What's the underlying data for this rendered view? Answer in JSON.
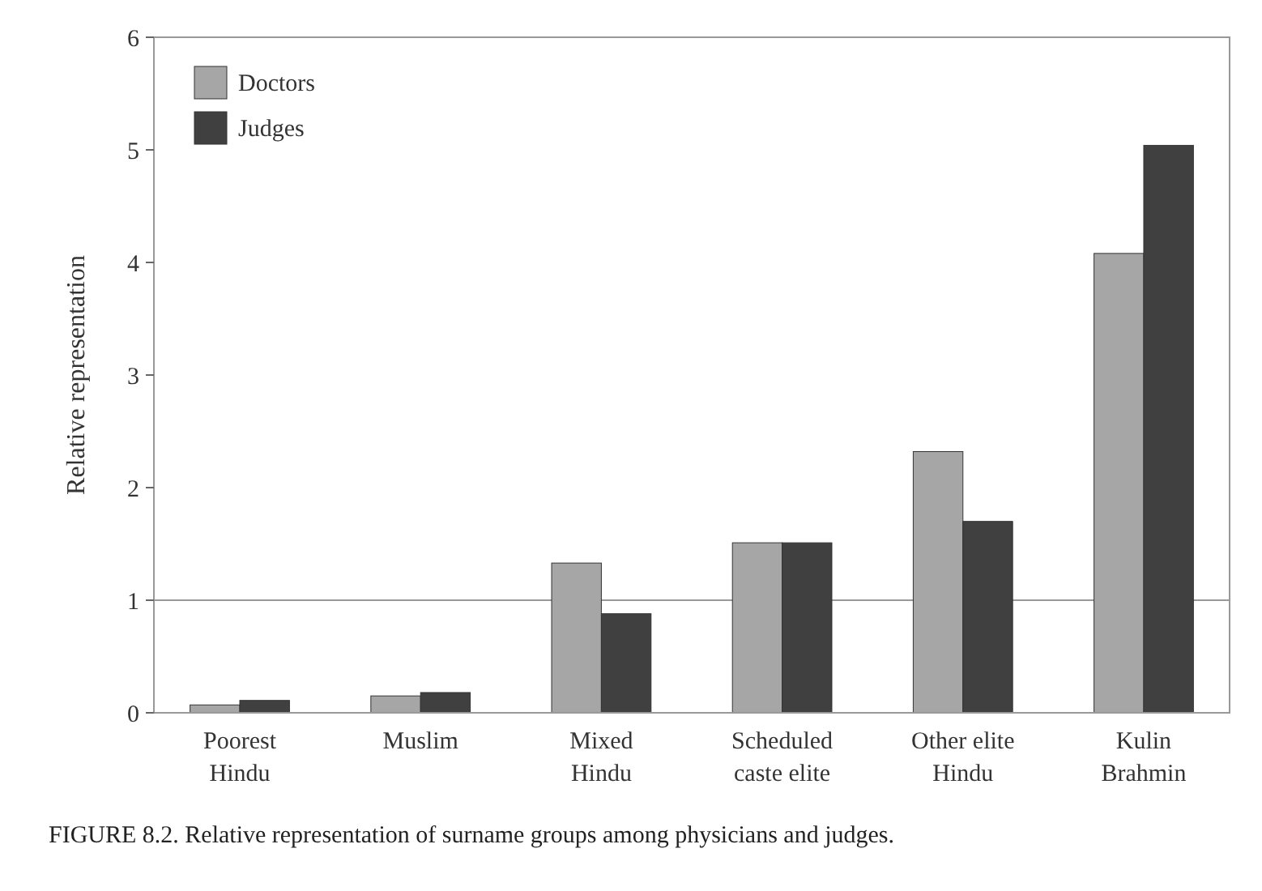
{
  "chart_data": {
    "type": "bar",
    "ylabel": "Relative representation",
    "categories": [
      "Poorest\nHindu",
      "Muslim",
      "Mixed\nHindu",
      "Scheduled\ncaste elite",
      "Other elite\nHindu",
      "Kulin\nBrahmin"
    ],
    "series": [
      {
        "name": "Doctors",
        "color": "#a6a6a6",
        "values": [
          0.07,
          0.15,
          1.33,
          1.51,
          2.32,
          4.08
        ]
      },
      {
        "name": "Judges",
        "color": "#404040",
        "values": [
          0.11,
          0.18,
          0.88,
          1.51,
          1.7,
          5.04
        ]
      }
    ],
    "ylim": [
      0,
      6
    ],
    "yticks": [
      0,
      1,
      2,
      3,
      4,
      5,
      6
    ],
    "grid": false,
    "legend": "top left",
    "ref_lines": [
      {
        "axis": "y",
        "value": 1,
        "color": "#999999"
      }
    ],
    "annotations": [
      "FIGURE 8.2.  Relative representation of surname groups among physicians and judges."
    ]
  }
}
